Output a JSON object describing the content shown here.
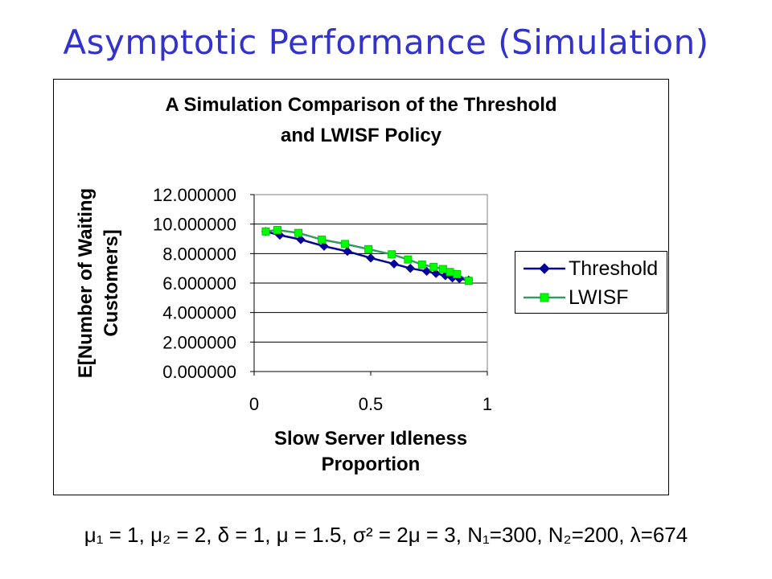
{
  "slide": {
    "title": "Asymptotic Performance (Simulation)",
    "footnote": "μ₁ = 1, μ₂ = 2, δ = 1, μ = 1.5, σ² = 2μ = 3, N₁=300, N₂=200, λ=674"
  },
  "chart_data": {
    "type": "line",
    "title_line1": "A Simulation Comparison of the Threshold",
    "title_line2": "and LWISF Policy",
    "xlabel_line1": "Slow Server Idleness",
    "xlabel_line2": "Proportion",
    "ylabel_line1": "E[Number of Waiting",
    "ylabel_line2": "Customers]",
    "xlim": [
      0,
      1
    ],
    "ylim": [
      0,
      12
    ],
    "x_ticks": [
      {
        "value": 0,
        "label": "0"
      },
      {
        "value": 0.5,
        "label": "0.5"
      },
      {
        "value": 1,
        "label": "1"
      }
    ],
    "y_ticks": [
      {
        "value": 0,
        "label": "0.000000"
      },
      {
        "value": 2,
        "label": "2.000000"
      },
      {
        "value": 4,
        "label": "4.000000"
      },
      {
        "value": 6,
        "label": "6.000000"
      },
      {
        "value": 8,
        "label": "8.000000"
      },
      {
        "value": 10,
        "label": "10.000000"
      },
      {
        "value": 12,
        "label": "12.000000"
      }
    ],
    "grid": "horizontal",
    "legend_position": "right",
    "series": [
      {
        "name": "Threshold",
        "color": "#000099",
        "marker": "diamond",
        "points": [
          [
            0.05,
            9.5
          ],
          [
            0.11,
            9.25
          ],
          [
            0.2,
            8.95
          ],
          [
            0.3,
            8.5
          ],
          [
            0.4,
            8.15
          ],
          [
            0.5,
            7.7
          ],
          [
            0.6,
            7.3
          ],
          [
            0.67,
            7.0
          ],
          [
            0.74,
            6.8
          ],
          [
            0.78,
            6.65
          ],
          [
            0.82,
            6.5
          ],
          [
            0.85,
            6.35
          ],
          [
            0.88,
            6.3
          ],
          [
            0.92,
            6.2
          ]
        ]
      },
      {
        "name": "LWISF",
        "color": "#00ff00",
        "marker": "square",
        "points": [
          [
            0.05,
            9.5
          ],
          [
            0.1,
            9.6
          ],
          [
            0.19,
            9.4
          ],
          [
            0.29,
            8.95
          ],
          [
            0.39,
            8.65
          ],
          [
            0.49,
            8.3
          ],
          [
            0.59,
            7.95
          ],
          [
            0.66,
            7.6
          ],
          [
            0.72,
            7.25
          ],
          [
            0.77,
            7.1
          ],
          [
            0.81,
            6.95
          ],
          [
            0.84,
            6.75
          ],
          [
            0.87,
            6.6
          ],
          [
            0.92,
            6.15
          ]
        ]
      }
    ]
  }
}
